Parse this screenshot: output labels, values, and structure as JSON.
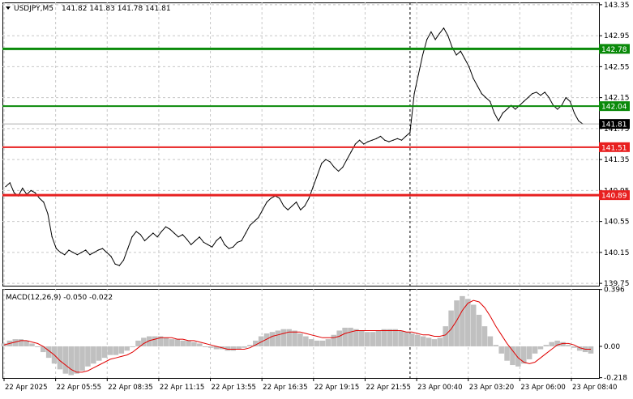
{
  "chart_data": [
    {
      "type": "line",
      "title": "USDJPY,M5",
      "ohlc_label": "141.82 141.83 141.78 141.81",
      "symbol_menu_icon": "triangle-down-icon",
      "ylim": [
        139.72,
        143.38
      ],
      "y_ticks": [
        "143.35",
        "142.95",
        "142.55",
        "142.15",
        "141.75",
        "141.35",
        "140.95",
        "140.55",
        "140.15",
        "139.75"
      ],
      "x_ticks": [
        "22 Apr 2025",
        "22 Apr 05:55",
        "22 Apr 08:35",
        "22 Apr 11:15",
        "22 Apr 13:55",
        "22 Apr 16:35",
        "22 Apr 19:15",
        "22 Apr 21:55",
        "23 Apr 00:40",
        "23 Apr 03:20",
        "23 Apr 06:00",
        "23 Apr 08:40"
      ],
      "grid": true,
      "line_color": "#000000",
      "series": [
        {
          "values": [
            141.0,
            141.05,
            140.92,
            140.88,
            140.98,
            140.9,
            140.95,
            140.92,
            140.85,
            140.8,
            140.65,
            140.35,
            140.2,
            140.15,
            140.12,
            140.18,
            140.15,
            140.12,
            140.15,
            140.18,
            140.12,
            140.15,
            140.18,
            140.2,
            140.15,
            140.1,
            140.0,
            139.98,
            140.05,
            140.2,
            140.35,
            140.42,
            140.38,
            140.3,
            140.35,
            140.4,
            140.35,
            140.42,
            140.48,
            140.45,
            140.4,
            140.35,
            140.38,
            140.32,
            140.25,
            140.3,
            140.35,
            140.28,
            140.25,
            140.22,
            140.3,
            140.35,
            140.25,
            140.2,
            140.22,
            140.28,
            140.3,
            140.4,
            140.5,
            140.55,
            140.6,
            140.7,
            140.8,
            140.85,
            140.88,
            140.85,
            140.75,
            140.7,
            140.75,
            140.8,
            140.7,
            140.75,
            140.85,
            141.0,
            141.15,
            141.3,
            141.35,
            141.32,
            141.25,
            141.2,
            141.25,
            141.35,
            141.45,
            141.55,
            141.6,
            141.55,
            141.58,
            141.6,
            141.62,
            141.65,
            141.6,
            141.58,
            141.6,
            141.62,
            141.6,
            141.65,
            141.7,
            142.2,
            142.45,
            142.7,
            142.9,
            143.0,
            142.9,
            142.98,
            143.05,
            142.95,
            142.8,
            142.7,
            142.75,
            142.65,
            142.55,
            142.4,
            142.3,
            142.2,
            142.15,
            142.1,
            141.95,
            141.85,
            141.95,
            142.0,
            142.05,
            142.0,
            142.05,
            142.1,
            142.15,
            142.2,
            142.22,
            142.18,
            142.22,
            142.15,
            142.05,
            142.0,
            142.05,
            142.15,
            142.1,
            141.95,
            141.85,
            141.81
          ]
        }
      ],
      "levels": [
        {
          "value": 142.78,
          "label": "142.78",
          "color": "#0a8a0a",
          "heavy": true
        },
        {
          "value": 142.04,
          "label": "142.04",
          "color": "#0a8a0a",
          "heavy": false
        },
        {
          "value": 141.51,
          "label": "141.51",
          "color": "#e82020",
          "heavy": false
        },
        {
          "value": 140.89,
          "label": "140.89",
          "color": "#e82020",
          "heavy": true
        }
      ],
      "current_price": {
        "value": 141.81,
        "label": "141.81",
        "color": "#000000"
      },
      "vertical_marker_x_index": 96
    },
    {
      "type": "bar",
      "title": "MACD(12,26,9) -0.050 -0.022",
      "ylim": [
        -0.22,
        0.4
      ],
      "y_ticks": [
        "0.396",
        "0.00",
        "-0.218"
      ],
      "hist_color": "#c0c0c0",
      "signal_color": "#e00000",
      "series": [
        {
          "name": "MACD",
          "values": [
            0.02,
            0.04,
            0.05,
            0.05,
            0.04,
            0.02,
            0.0,
            -0.04,
            -0.08,
            -0.12,
            -0.16,
            -0.19,
            -0.2,
            -0.19,
            -0.17,
            -0.14,
            -0.12,
            -0.1,
            -0.08,
            -0.06,
            -0.06,
            -0.05,
            -0.03,
            0.0,
            0.04,
            0.06,
            0.07,
            0.07,
            0.07,
            0.06,
            0.05,
            0.05,
            0.04,
            0.04,
            0.03,
            0.02,
            0.0,
            -0.01,
            -0.02,
            -0.02,
            -0.03,
            -0.03,
            -0.02,
            -0.01,
            0.01,
            0.04,
            0.07,
            0.09,
            0.1,
            0.11,
            0.12,
            0.12,
            0.11,
            0.09,
            0.07,
            0.05,
            0.04,
            0.04,
            0.05,
            0.08,
            0.11,
            0.13,
            0.13,
            0.12,
            0.11,
            0.1,
            0.1,
            0.11,
            0.12,
            0.12,
            0.12,
            0.11,
            0.1,
            0.09,
            0.08,
            0.07,
            0.06,
            0.05,
            0.06,
            0.14,
            0.25,
            0.32,
            0.35,
            0.33,
            0.29,
            0.22,
            0.14,
            0.07,
            0.01,
            -0.05,
            -0.1,
            -0.13,
            -0.14,
            -0.12,
            -0.09,
            -0.05,
            -0.02,
            0.01,
            0.03,
            0.04,
            0.03,
            0.01,
            -0.01,
            -0.03,
            -0.04,
            -0.05
          ]
        },
        {
          "name": "Signal",
          "values": [
            0.01,
            0.02,
            0.03,
            0.04,
            0.04,
            0.03,
            0.02,
            0.0,
            -0.03,
            -0.06,
            -0.1,
            -0.13,
            -0.16,
            -0.18,
            -0.18,
            -0.17,
            -0.15,
            -0.13,
            -0.11,
            -0.09,
            -0.08,
            -0.07,
            -0.06,
            -0.04,
            -0.01,
            0.02,
            0.04,
            0.05,
            0.06,
            0.06,
            0.06,
            0.05,
            0.05,
            0.04,
            0.04,
            0.03,
            0.02,
            0.01,
            0.0,
            -0.01,
            -0.02,
            -0.02,
            -0.02,
            -0.02,
            -0.01,
            0.01,
            0.03,
            0.05,
            0.07,
            0.08,
            0.09,
            0.1,
            0.1,
            0.1,
            0.09,
            0.08,
            0.07,
            0.06,
            0.06,
            0.06,
            0.07,
            0.09,
            0.1,
            0.11,
            0.11,
            0.11,
            0.11,
            0.11,
            0.11,
            0.11,
            0.11,
            0.11,
            0.1,
            0.1,
            0.09,
            0.08,
            0.08,
            0.07,
            0.07,
            0.08,
            0.12,
            0.18,
            0.25,
            0.3,
            0.32,
            0.31,
            0.27,
            0.21,
            0.14,
            0.08,
            0.02,
            -0.03,
            -0.08,
            -0.11,
            -0.12,
            -0.11,
            -0.08,
            -0.05,
            -0.02,
            0.01,
            0.02,
            0.02,
            0.01,
            -0.01,
            -0.02,
            -0.02
          ]
        }
      ]
    }
  ]
}
